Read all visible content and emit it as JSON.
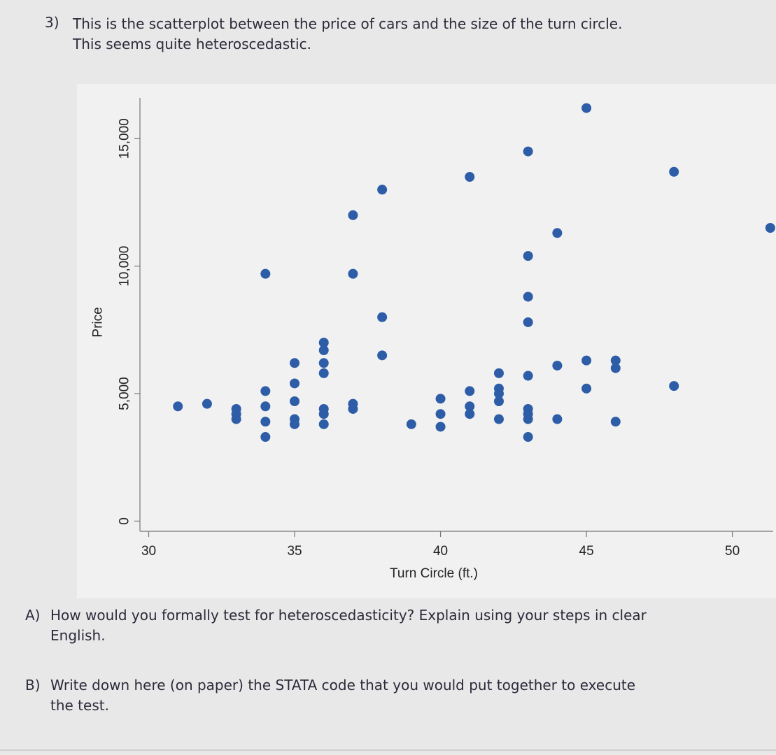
{
  "question": {
    "number": "3)",
    "line1": "This is the scatterplot between the price of cars and the size of the turn circle.",
    "line2": "This seems quite heteroscedastic."
  },
  "parts": [
    {
      "label": "A)",
      "line1": "How would you formally test for heteroscedasticity? Explain using your steps in clear",
      "line2": "English."
    },
    {
      "label": "B)",
      "line1": "Write down here (on paper) the STATA code that you would put together to execute",
      "line2": "the test."
    }
  ],
  "chart_data": {
    "type": "scatter",
    "xlabel": "Turn Circle (ft.)",
    "ylabel": "Price",
    "x_ticks": [
      30,
      35,
      40,
      45,
      50
    ],
    "x_tick_labels": [
      "30",
      "35",
      "40",
      "45",
      "50"
    ],
    "y_ticks": [
      0,
      5000,
      10000,
      15000
    ],
    "y_tick_labels": [
      "0",
      "5,000",
      "10,000",
      "15,000"
    ],
    "xlim": [
      29.7,
      51.4
    ],
    "ylim": [
      -400,
      16600
    ],
    "grid": false,
    "points": [
      {
        "x": 31,
        "y": 4500
      },
      {
        "x": 32,
        "y": 4600
      },
      {
        "x": 33,
        "y": 4400
      },
      {
        "x": 33,
        "y": 4200
      },
      {
        "x": 33,
        "y": 4000
      },
      {
        "x": 34,
        "y": 9700
      },
      {
        "x": 34,
        "y": 5100
      },
      {
        "x": 34,
        "y": 4500
      },
      {
        "x": 34,
        "y": 3900
      },
      {
        "x": 34,
        "y": 3300
      },
      {
        "x": 35,
        "y": 6200
      },
      {
        "x": 35,
        "y": 5400
      },
      {
        "x": 35,
        "y": 4700
      },
      {
        "x": 35,
        "y": 4000
      },
      {
        "x": 35,
        "y": 3800
      },
      {
        "x": 36,
        "y": 7000
      },
      {
        "x": 36,
        "y": 6700
      },
      {
        "x": 36,
        "y": 6200
      },
      {
        "x": 36,
        "y": 5800
      },
      {
        "x": 36,
        "y": 4400
      },
      {
        "x": 36,
        "y": 4200
      },
      {
        "x": 36,
        "y": 3800
      },
      {
        "x": 37,
        "y": 12000
      },
      {
        "x": 37,
        "y": 9700
      },
      {
        "x": 37,
        "y": 4600
      },
      {
        "x": 37,
        "y": 4400
      },
      {
        "x": 38,
        "y": 13000
      },
      {
        "x": 38,
        "y": 8000
      },
      {
        "x": 38,
        "y": 6500
      },
      {
        "x": 39,
        "y": 3800
      },
      {
        "x": 40,
        "y": 4800
      },
      {
        "x": 40,
        "y": 4200
      },
      {
        "x": 40,
        "y": 3700
      },
      {
        "x": 41,
        "y": 13500
      },
      {
        "x": 41,
        "y": 5100
      },
      {
        "x": 41,
        "y": 4500
      },
      {
        "x": 41,
        "y": 4200
      },
      {
        "x": 42,
        "y": 5800
      },
      {
        "x": 42,
        "y": 5200
      },
      {
        "x": 42,
        "y": 5000
      },
      {
        "x": 42,
        "y": 4700
      },
      {
        "x": 42,
        "y": 4000
      },
      {
        "x": 43,
        "y": 14500
      },
      {
        "x": 43,
        "y": 10400
      },
      {
        "x": 43,
        "y": 8800
      },
      {
        "x": 43,
        "y": 7800
      },
      {
        "x": 43,
        "y": 5700
      },
      {
        "x": 43,
        "y": 4400
      },
      {
        "x": 43,
        "y": 4200
      },
      {
        "x": 43,
        "y": 4000
      },
      {
        "x": 43,
        "y": 3300
      },
      {
        "x": 44,
        "y": 11300
      },
      {
        "x": 44,
        "y": 6100
      },
      {
        "x": 44,
        "y": 4000
      },
      {
        "x": 45,
        "y": 16200
      },
      {
        "x": 45,
        "y": 6300
      },
      {
        "x": 45,
        "y": 5200
      },
      {
        "x": 46,
        "y": 6300
      },
      {
        "x": 46,
        "y": 6000
      },
      {
        "x": 46,
        "y": 3900
      },
      {
        "x": 48,
        "y": 13700
      },
      {
        "x": 48,
        "y": 5300
      },
      {
        "x": 51.3,
        "y": 11500
      }
    ],
    "point_color": "#2e5da8"
  }
}
